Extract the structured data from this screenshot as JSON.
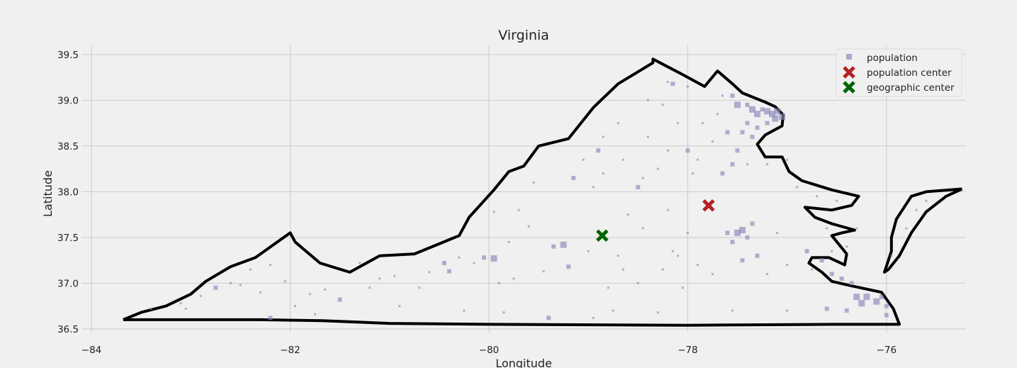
{
  "chart_data": {
    "type": "scatter",
    "title": "Virginia",
    "xlabel": "Longitude",
    "ylabel": "Latitude",
    "xlim": [
      -84.1,
      -75.2
    ],
    "ylim": [
      36.46,
      39.6
    ],
    "xticks": [
      -84,
      -82,
      -80,
      -78,
      -76
    ],
    "yticks": [
      36.5,
      37.0,
      37.5,
      38.0,
      38.5,
      39.0,
      39.5
    ],
    "xtick_labels": [
      "−84",
      "−82",
      "−80",
      "−78",
      "−76"
    ],
    "ytick_labels": [
      "36.5",
      "37.0",
      "37.5",
      "38.0",
      "38.5",
      "39.0",
      "39.5"
    ],
    "grid": true,
    "legend_position": "top-right",
    "colors": {
      "background": "#f0f0f0",
      "grid": "#cbcbcb",
      "population": "#8b87b8",
      "population_center": "#b22222",
      "geographic_center": "#006400",
      "border": "#000000"
    },
    "series": [
      {
        "name": "population",
        "marker": "square",
        "points": [
          [
            -83.4,
            36.72,
            1
          ],
          [
            -83.1,
            36.78,
            1
          ],
          [
            -82.9,
            36.86,
            1
          ],
          [
            -82.75,
            36.95,
            2
          ],
          [
            -82.6,
            37.0,
            1
          ],
          [
            -82.4,
            37.15,
            1
          ],
          [
            -82.2,
            37.2,
            1
          ],
          [
            -82.3,
            36.9,
            1
          ],
          [
            -82.5,
            36.98,
            1
          ],
          [
            -82.05,
            37.02,
            1
          ],
          [
            -81.95,
            36.75,
            1
          ],
          [
            -81.8,
            36.88,
            1
          ],
          [
            -81.65,
            36.93,
            1
          ],
          [
            -81.5,
            36.82,
            2
          ],
          [
            -81.3,
            37.22,
            1
          ],
          [
            -81.2,
            36.95,
            1
          ],
          [
            -81.1,
            37.05,
            1
          ],
          [
            -80.95,
            37.08,
            1
          ],
          [
            -80.9,
            36.75,
            1
          ],
          [
            -80.7,
            36.95,
            1
          ],
          [
            -80.6,
            37.12,
            1
          ],
          [
            -80.45,
            37.22,
            2
          ],
          [
            -80.4,
            37.13,
            2
          ],
          [
            -80.3,
            37.28,
            1
          ],
          [
            -80.15,
            37.22,
            1
          ],
          [
            -80.05,
            37.28,
            2
          ],
          [
            -79.95,
            37.27,
            3
          ],
          [
            -79.9,
            37.0,
            1
          ],
          [
            -79.8,
            37.45,
            1
          ],
          [
            -79.6,
            37.62,
            1
          ],
          [
            -79.45,
            37.13,
            1
          ],
          [
            -79.35,
            37.4,
            2
          ],
          [
            -79.25,
            37.42,
            3
          ],
          [
            -79.2,
            37.18,
            2
          ],
          [
            -79.0,
            37.35,
            1
          ],
          [
            -78.95,
            36.62,
            1
          ],
          [
            -78.8,
            36.95,
            1
          ],
          [
            -78.7,
            37.3,
            1
          ],
          [
            -78.5,
            37.0,
            1
          ],
          [
            -78.3,
            36.68,
            1
          ],
          [
            -78.25,
            37.15,
            1
          ],
          [
            -78.1,
            37.3,
            1
          ],
          [
            -78.0,
            37.55,
            1
          ],
          [
            -77.9,
            37.2,
            1
          ],
          [
            -77.6,
            37.55,
            2
          ],
          [
            -77.5,
            37.55,
            3
          ],
          [
            -77.45,
            37.58,
            3
          ],
          [
            -77.4,
            37.5,
            2
          ],
          [
            -77.35,
            37.65,
            2
          ],
          [
            -77.55,
            37.45,
            2
          ],
          [
            -77.45,
            37.25,
            2
          ],
          [
            -77.3,
            37.3,
            2
          ],
          [
            -77.2,
            37.1,
            1
          ],
          [
            -77.0,
            37.2,
            1
          ],
          [
            -76.8,
            37.35,
            2
          ],
          [
            -76.65,
            37.25,
            2
          ],
          [
            -76.55,
            37.1,
            2
          ],
          [
            -76.45,
            37.05,
            2
          ],
          [
            -76.35,
            37.0,
            2
          ],
          [
            -76.3,
            36.85,
            3
          ],
          [
            -76.25,
            36.78,
            3
          ],
          [
            -76.2,
            36.85,
            3
          ],
          [
            -76.1,
            36.8,
            3
          ],
          [
            -76.05,
            36.85,
            2
          ],
          [
            -76.0,
            36.75,
            2
          ],
          [
            -76.4,
            36.7,
            2
          ],
          [
            -76.6,
            36.72,
            2
          ],
          [
            -76.0,
            36.65,
            2
          ],
          [
            -75.95,
            37.3,
            1
          ],
          [
            -75.8,
            37.6,
            1
          ],
          [
            -75.7,
            37.8,
            1
          ],
          [
            -75.6,
            37.9,
            1
          ],
          [
            -78.95,
            38.05,
            1
          ],
          [
            -78.85,
            38.2,
            1
          ],
          [
            -78.9,
            38.45,
            2
          ],
          [
            -79.05,
            38.35,
            1
          ],
          [
            -78.65,
            38.35,
            1
          ],
          [
            -78.5,
            38.05,
            2
          ],
          [
            -78.45,
            38.15,
            1
          ],
          [
            -78.3,
            38.25,
            1
          ],
          [
            -78.2,
            38.45,
            1
          ],
          [
            -78.0,
            38.45,
            2
          ],
          [
            -77.95,
            38.2,
            1
          ],
          [
            -78.1,
            38.75,
            1
          ],
          [
            -78.25,
            38.95,
            1
          ],
          [
            -78.4,
            39.0,
            1
          ],
          [
            -78.2,
            39.2,
            1
          ],
          [
            -78.15,
            39.18,
            2
          ],
          [
            -78.0,
            39.15,
            1
          ],
          [
            -77.85,
            38.75,
            1
          ],
          [
            -77.7,
            38.85,
            1
          ],
          [
            -77.65,
            39.05,
            1
          ],
          [
            -77.55,
            39.05,
            2
          ],
          [
            -77.5,
            38.95,
            3
          ],
          [
            -77.4,
            38.95,
            2
          ],
          [
            -77.35,
            38.9,
            3
          ],
          [
            -77.3,
            38.85,
            3
          ],
          [
            -77.25,
            38.9,
            2
          ],
          [
            -77.2,
            38.88,
            3
          ],
          [
            -77.15,
            38.85,
            3
          ],
          [
            -77.1,
            38.88,
            3
          ],
          [
            -77.05,
            38.82,
            3
          ],
          [
            -77.12,
            38.8,
            3
          ],
          [
            -77.2,
            38.75,
            2
          ],
          [
            -77.3,
            38.7,
            2
          ],
          [
            -77.4,
            38.75,
            2
          ],
          [
            -77.45,
            38.65,
            2
          ],
          [
            -77.35,
            38.6,
            2
          ],
          [
            -77.5,
            38.45,
            2
          ],
          [
            -77.55,
            38.3,
            2
          ],
          [
            -77.4,
            38.3,
            1
          ],
          [
            -77.65,
            38.2,
            2
          ],
          [
            -77.2,
            38.3,
            1
          ],
          [
            -76.9,
            38.05,
            1
          ],
          [
            -76.7,
            37.95,
            1
          ],
          [
            -76.5,
            37.9,
            1
          ],
          [
            -76.6,
            37.6,
            1
          ],
          [
            -76.4,
            37.4,
            1
          ],
          [
            -79.7,
            37.8,
            1
          ],
          [
            -79.95,
            37.78,
            1
          ],
          [
            -79.55,
            38.1,
            1
          ],
          [
            -79.15,
            38.15,
            2
          ],
          [
            -78.6,
            37.75,
            1
          ],
          [
            -78.2,
            37.8,
            1
          ],
          [
            -78.15,
            37.35,
            1
          ],
          [
            -79.75,
            37.05,
            1
          ],
          [
            -80.25,
            36.7,
            1
          ],
          [
            -79.85,
            36.68,
            1
          ],
          [
            -79.4,
            36.62,
            2
          ],
          [
            -78.75,
            36.7,
            1
          ],
          [
            -77.55,
            36.7,
            1
          ],
          [
            -77.0,
            36.7,
            1
          ],
          [
            -81.75,
            36.66,
            1
          ],
          [
            -82.2,
            36.62,
            2
          ],
          [
            -83.05,
            36.72,
            1
          ],
          [
            -78.45,
            37.6,
            1
          ],
          [
            -78.65,
            37.15,
            1
          ],
          [
            -78.05,
            36.95,
            1
          ],
          [
            -77.75,
            37.1,
            1
          ],
          [
            -77.0,
            38.35,
            1
          ],
          [
            -77.6,
            38.65,
            2
          ],
          [
            -77.75,
            38.55,
            1
          ],
          [
            -77.9,
            38.35,
            1
          ],
          [
            -78.4,
            38.6,
            1
          ],
          [
            -78.7,
            38.75,
            1
          ],
          [
            -78.85,
            38.6,
            1
          ],
          [
            -76.75,
            37.15,
            1
          ],
          [
            -77.1,
            37.55,
            1
          ],
          [
            -76.55,
            37.35,
            1
          ],
          [
            -76.3,
            37.6,
            1
          ]
        ]
      },
      {
        "name": "population center",
        "marker": "x",
        "points": [
          [
            -77.79,
            37.85
          ]
        ]
      },
      {
        "name": "geographic center",
        "marker": "x",
        "points": [
          [
            -78.86,
            37.52
          ]
        ]
      }
    ],
    "legend": [
      "population",
      "population center",
      "geographic center"
    ],
    "boundary": [
      [
        -83.68,
        36.6
      ],
      [
        -83.2,
        36.6
      ],
      [
        -82.3,
        36.6
      ],
      [
        -81.68,
        36.59
      ],
      [
        -81.0,
        36.56
      ],
      [
        -80.0,
        36.55
      ],
      [
        -78.0,
        36.54
      ],
      [
        -76.5,
        36.55
      ],
      [
        -75.87,
        36.55
      ],
      [
        -75.93,
        36.72
      ],
      [
        -76.05,
        36.9
      ],
      [
        -76.35,
        36.97
      ],
      [
        -76.55,
        37.02
      ],
      [
        -76.65,
        37.12
      ],
      [
        -76.78,
        37.22
      ],
      [
        -76.75,
        37.28
      ],
      [
        -76.58,
        37.28
      ],
      [
        -76.42,
        37.2
      ],
      [
        -76.4,
        37.32
      ],
      [
        -76.55,
        37.52
      ],
      [
        -76.45,
        37.55
      ],
      [
        -76.32,
        37.58
      ],
      [
        -76.55,
        37.65
      ],
      [
        -76.72,
        37.72
      ],
      [
        -76.82,
        37.83
      ],
      [
        -76.55,
        37.8
      ],
      [
        -76.35,
        37.85
      ],
      [
        -76.28,
        37.95
      ],
      [
        -76.55,
        38.02
      ],
      [
        -76.85,
        38.12
      ],
      [
        -76.98,
        38.22
      ],
      [
        -77.05,
        38.38
      ],
      [
        -77.22,
        38.38
      ],
      [
        -77.3,
        38.52
      ],
      [
        -77.22,
        38.62
      ],
      [
        -77.05,
        38.72
      ],
      [
        -77.04,
        38.84
      ],
      [
        -77.12,
        38.93
      ],
      [
        -77.22,
        38.98
      ],
      [
        -77.45,
        39.08
      ],
      [
        -77.55,
        39.18
      ],
      [
        -77.7,
        39.32
      ],
      [
        -77.83,
        39.15
      ],
      [
        -78.05,
        39.28
      ],
      [
        -78.35,
        39.45
      ],
      [
        -78.35,
        39.41
      ],
      [
        -78.7,
        39.18
      ],
      [
        -78.95,
        38.92
      ],
      [
        -79.2,
        38.58
      ],
      [
        -79.5,
        38.5
      ],
      [
        -79.65,
        38.28
      ],
      [
        -79.8,
        38.22
      ],
      [
        -79.95,
        38.02
      ],
      [
        -80.2,
        37.72
      ],
      [
        -80.3,
        37.52
      ],
      [
        -80.75,
        37.32
      ],
      [
        -81.1,
        37.3
      ],
      [
        -81.4,
        37.12
      ],
      [
        -81.7,
        37.22
      ],
      [
        -81.95,
        37.45
      ],
      [
        -82.0,
        37.55
      ],
      [
        -82.35,
        37.28
      ],
      [
        -82.6,
        37.18
      ],
      [
        -82.85,
        37.02
      ],
      [
        -83.0,
        36.88
      ],
      [
        -83.25,
        36.75
      ],
      [
        -83.5,
        36.68
      ],
      [
        -83.68,
        36.6
      ]
    ],
    "boundary_eastern_shore": [
      [
        -75.24,
        38.03
      ],
      [
        -75.6,
        38.0
      ],
      [
        -75.75,
        37.95
      ],
      [
        -75.9,
        37.7
      ],
      [
        -75.95,
        37.5
      ],
      [
        -75.95,
        37.35
      ],
      [
        -76.02,
        37.12
      ],
      [
        -75.98,
        37.15
      ],
      [
        -75.87,
        37.3
      ],
      [
        -75.75,
        37.55
      ],
      [
        -75.6,
        37.78
      ],
      [
        -75.4,
        37.95
      ],
      [
        -75.24,
        38.03
      ]
    ]
  }
}
